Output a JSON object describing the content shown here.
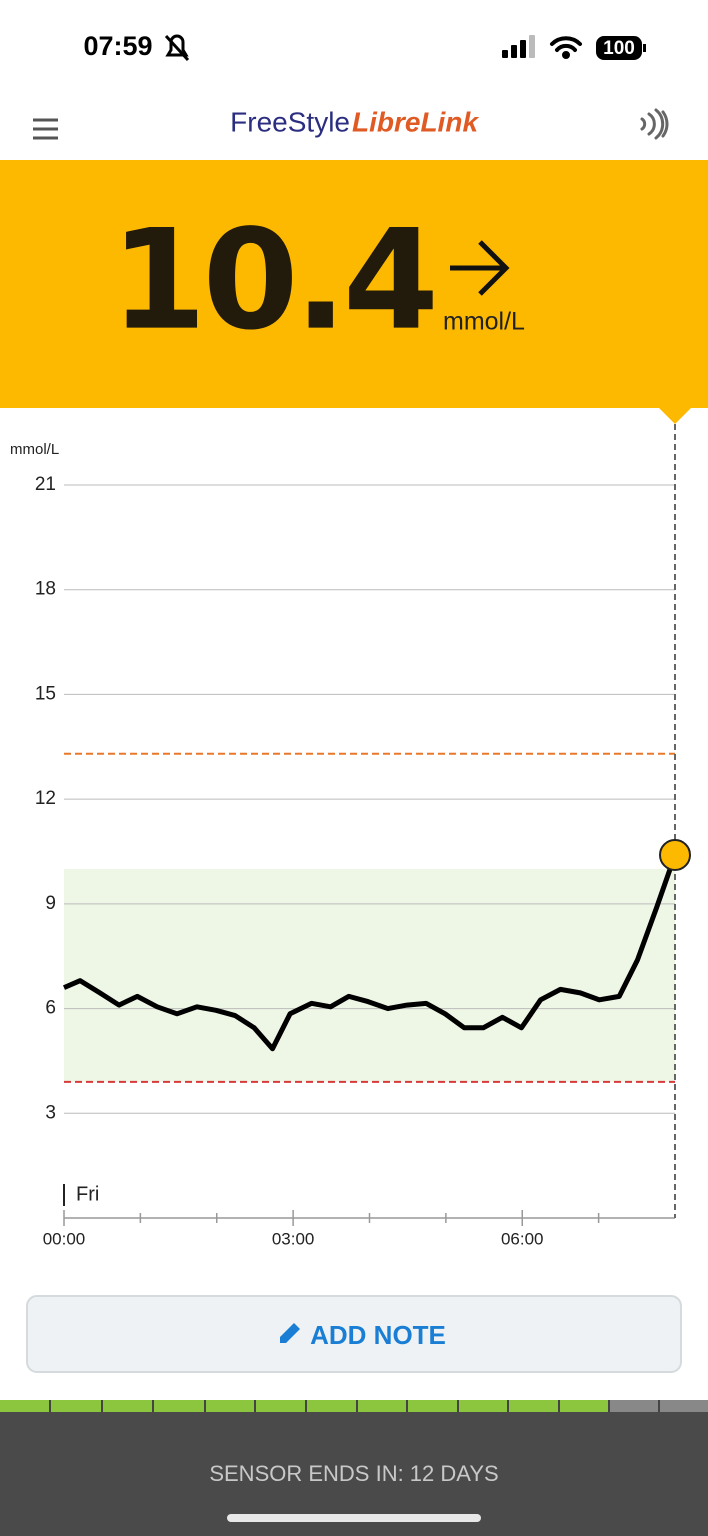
{
  "status_bar": {
    "time": "07:59",
    "battery": "100"
  },
  "header": {
    "brand_1": "FreeStyle",
    "brand_2": "LibreLink"
  },
  "reading": {
    "value": "10.4",
    "unit": "mmol/L"
  },
  "chart_data": {
    "type": "line",
    "y_label": "mmol/L",
    "day_label": "Fri",
    "x": [
      0,
      0.21,
      0.47,
      0.72,
      0.96,
      1.22,
      1.48,
      1.74,
      1.99,
      2.24,
      2.49,
      2.73,
      2.96,
      3.24,
      3.49,
      3.73,
      3.98,
      4.24,
      4.49,
      4.74,
      4.99,
      5.24,
      5.49,
      5.74,
      5.99,
      6.24,
      6.5,
      6.76,
      7.01,
      7.27,
      7.51,
      7.76,
      8
    ],
    "series": [
      {
        "color": "#000000",
        "values": [
          6.6,
          6.8,
          6.45,
          6.1,
          6.35,
          6.05,
          5.85,
          6.05,
          5.95,
          5.8,
          5.45,
          4.85,
          5.85,
          6.15,
          6.05,
          6.35,
          6.2,
          6.0,
          6.1,
          6.15,
          5.85,
          5.45,
          5.45,
          5.75,
          5.45,
          6.25,
          6.55,
          6.45,
          6.25,
          6.35,
          7.4,
          8.9,
          10.4
        ]
      }
    ],
    "xlim": [
      0,
      8
    ],
    "xticks": [
      {
        "value": 0,
        "label": "00:00"
      },
      {
        "value": 3,
        "label": "03:00"
      },
      {
        "value": 6,
        "label": "06:00"
      }
    ],
    "xminor_ticks": [
      1,
      2,
      4,
      5,
      7
    ],
    "ylim": [
      0,
      21
    ],
    "yticks": [
      3,
      6,
      9,
      12,
      15,
      18,
      21
    ],
    "grid": true,
    "target_range": [
      3.9,
      10.0
    ],
    "target_color": "#eef7e6",
    "high_line": 13.3,
    "high_color": "#e8792c",
    "low_line": 3.9,
    "low_color": "#d83a3a",
    "marker_color": "#fdb900"
  },
  "add_note": "ADD NOTE",
  "sensor_status": "SENSOR ENDS IN: 12 DAYS"
}
